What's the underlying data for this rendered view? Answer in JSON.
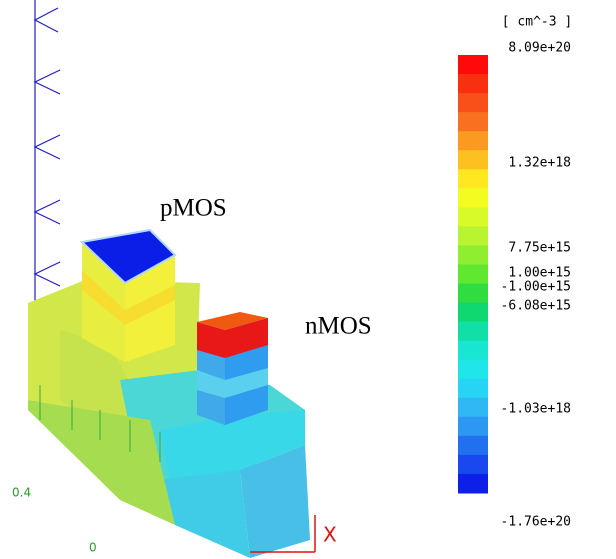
{
  "legend": {
    "unit": "[ cm^-3 ]",
    "labels": [
      "8.09e+20",
      "1.32e+18",
      "7.75e+15",
      "1.00e+15",
      "-1.00e+15",
      "-6.08e+15",
      "-1.03e+18",
      "-1.76e+20"
    ]
  },
  "annotations": {
    "pmos": "pMOS",
    "nmos": "nMOS"
  },
  "axes": {
    "z_tick": "0.4",
    "origin": "0",
    "x_axis": "X"
  }
}
